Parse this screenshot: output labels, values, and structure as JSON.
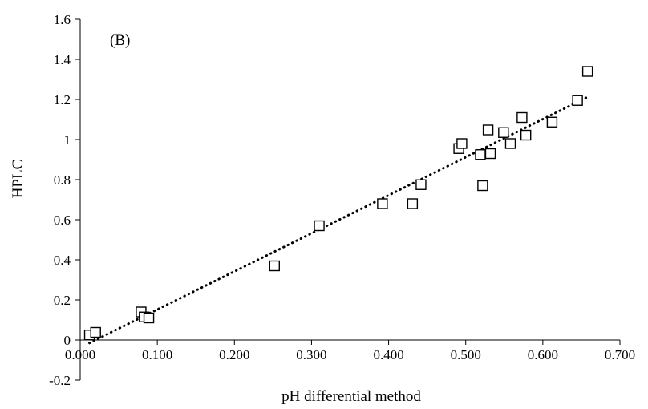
{
  "chart_data": {
    "type": "scatter",
    "annotation": "(B)",
    "xlabel": "pH differential method",
    "ylabel": "HPLC",
    "xlim": [
      0,
      0.7
    ],
    "ylim": [
      -0.2,
      1.6
    ],
    "x_ticks": [
      0,
      0.1,
      0.2,
      0.3,
      0.4,
      0.5,
      0.6,
      0.7
    ],
    "x_tick_labels": [
      "0.000",
      "0.100",
      "0.200",
      "0.300",
      "0.400",
      "0.500",
      "0.600",
      "0.700"
    ],
    "y_ticks": [
      -0.2,
      0,
      0.2,
      0.4,
      0.6,
      0.8,
      1,
      1.2,
      1.4,
      1.6
    ],
    "y_tick_labels": [
      "-0.2",
      "0",
      "0.2",
      "0.4",
      "0.6",
      "0.8",
      "1",
      "1.2",
      "1.4",
      "1.6"
    ],
    "grid": false,
    "marker": "open-square",
    "marker_color": "#000000",
    "points": [
      {
        "x": 0.012,
        "y": 0.025
      },
      {
        "x": 0.02,
        "y": 0.038
      },
      {
        "x": 0.079,
        "y": 0.14
      },
      {
        "x": 0.083,
        "y": 0.115
      },
      {
        "x": 0.089,
        "y": 0.11
      },
      {
        "x": 0.252,
        "y": 0.37
      },
      {
        "x": 0.31,
        "y": 0.57
      },
      {
        "x": 0.392,
        "y": 0.68
      },
      {
        "x": 0.431,
        "y": 0.68
      },
      {
        "x": 0.442,
        "y": 0.775
      },
      {
        "x": 0.491,
        "y": 0.955
      },
      {
        "x": 0.495,
        "y": 0.98
      },
      {
        "x": 0.519,
        "y": 0.925
      },
      {
        "x": 0.522,
        "y": 0.77
      },
      {
        "x": 0.529,
        "y": 1.048
      },
      {
        "x": 0.532,
        "y": 0.93
      },
      {
        "x": 0.549,
        "y": 1.035
      },
      {
        "x": 0.558,
        "y": 0.98
      },
      {
        "x": 0.573,
        "y": 1.11
      },
      {
        "x": 0.578,
        "y": 1.022
      },
      {
        "x": 0.612,
        "y": 1.087
      },
      {
        "x": 0.645,
        "y": 1.195
      },
      {
        "x": 0.658,
        "y": 1.34
      }
    ],
    "trendline": {
      "style": "dotted",
      "color": "#000000",
      "x_start": 0.012,
      "y_start": -0.015,
      "x_end": 0.658,
      "y_end": 1.212
    }
  }
}
